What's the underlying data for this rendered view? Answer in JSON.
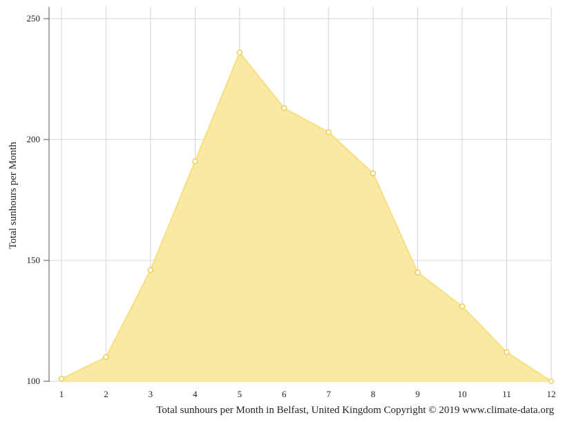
{
  "chart_data": {
    "type": "area",
    "x": [
      1,
      2,
      3,
      4,
      5,
      6,
      7,
      8,
      9,
      10,
      11,
      12
    ],
    "series": [
      {
        "values": [
          101,
          110,
          146,
          191,
          236,
          213,
          203,
          186,
          145,
          131,
          112,
          100
        ]
      }
    ],
    "xlabel": "",
    "ylabel": "Total sunhours per Month",
    "x_ticks": [
      "1",
      "2",
      "3",
      "4",
      "5",
      "6",
      "7",
      "8",
      "9",
      "10",
      "11",
      "12"
    ],
    "y_ticks": [
      "100",
      "150",
      "200",
      "250"
    ],
    "ylim": [
      100,
      255
    ],
    "xlim": [
      1,
      12
    ],
    "grid": true,
    "legend": "none",
    "caption": "Total sunhours per Month in Belfast, United Kingdom Copyright © 2019 www.climate-data.org",
    "colors": {
      "fill": "#f8e79b",
      "line": "#f7df7f",
      "marker_stroke": "#e9c93f",
      "grid": "#d4d4d4",
      "axis": "#555555"
    }
  }
}
